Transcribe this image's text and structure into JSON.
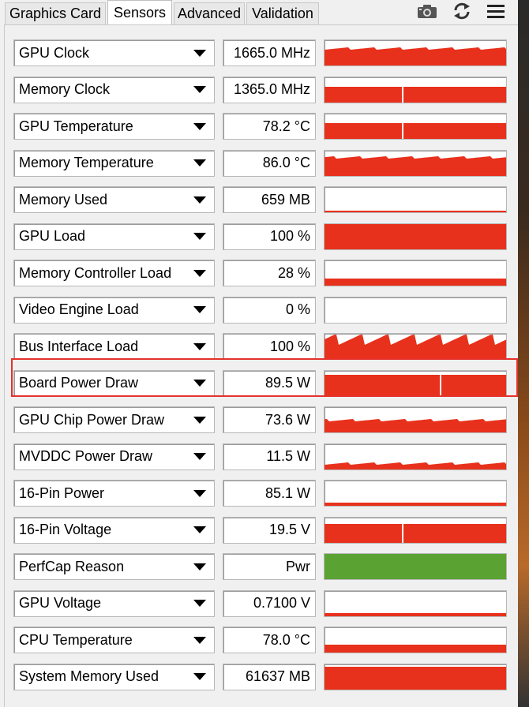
{
  "tabs": [
    {
      "label": "Graphics Card",
      "active": false
    },
    {
      "label": "Sensors",
      "active": true
    },
    {
      "label": "Advanced",
      "active": false
    },
    {
      "label": "Validation",
      "active": false
    }
  ],
  "toolbar": {
    "icons": [
      "camera-icon",
      "refresh-icon",
      "menu-icon"
    ]
  },
  "colors": {
    "graph_red": "#e8311c",
    "graph_green": "#5aa332",
    "highlight": "#e5312c"
  },
  "sensors": [
    {
      "name": "GPU Clock",
      "value": "1665.0 MHz",
      "level": 0.62,
      "color": "red",
      "pattern": "jagged"
    },
    {
      "name": "Memory Clock",
      "value": "1365.0 MHz",
      "level": 0.62,
      "color": "red",
      "pattern": "gap"
    },
    {
      "name": "GPU Temperature",
      "value": "78.2 °C",
      "level": 0.62,
      "color": "red",
      "pattern": "gap"
    },
    {
      "name": "Memory Temperature",
      "value": "86.0 °C",
      "level": 0.7,
      "color": "red",
      "pattern": "gap-noise"
    },
    {
      "name": "Memory Used",
      "value": "659 MB",
      "level": 0.06,
      "color": "red",
      "pattern": "flat"
    },
    {
      "name": "GPU Load",
      "value": "100 %",
      "level": 1.0,
      "color": "red",
      "pattern": "flat"
    },
    {
      "name": "Memory Controller Load",
      "value": "28 %",
      "level": 0.28,
      "color": "red",
      "pattern": "flat"
    },
    {
      "name": "Video Engine Load",
      "value": "0 %",
      "level": 0.0,
      "color": "red",
      "pattern": "flat"
    },
    {
      "name": "Bus Interface Load",
      "value": "100 %",
      "level": 0.55,
      "color": "red",
      "pattern": "spiky"
    },
    {
      "name": "Board Power Draw",
      "value": "89.5 W",
      "level": 0.85,
      "color": "red",
      "pattern": "gap"
    },
    {
      "name": "GPU Chip Power Draw",
      "value": "73.6 W",
      "level": 0.45,
      "color": "red",
      "pattern": "gap-noise"
    },
    {
      "name": "MVDDC Power Draw",
      "value": "11.5 W",
      "level": 0.2,
      "color": "red",
      "pattern": "noise"
    },
    {
      "name": "16-Pin Power",
      "value": "85.1 W",
      "level": 0.12,
      "color": "red",
      "pattern": "flat"
    },
    {
      "name": "16-Pin Voltage",
      "value": "19.5 V",
      "level": 0.75,
      "color": "red",
      "pattern": "gap"
    },
    {
      "name": "PerfCap Reason",
      "value": "Pwr",
      "level": 1.0,
      "color": "green",
      "pattern": "flat"
    },
    {
      "name": "GPU Voltage",
      "value": "0.7100 V",
      "level": 0.12,
      "color": "red",
      "pattern": "flat"
    },
    {
      "name": "CPU Temperature",
      "value": "78.0 °C",
      "level": 0.3,
      "color": "red",
      "pattern": "flat"
    },
    {
      "name": "System Memory Used",
      "value": "61637 MB",
      "level": 0.9,
      "color": "red",
      "pattern": "flat"
    }
  ],
  "highlighted_sensor": "Board Power Draw"
}
